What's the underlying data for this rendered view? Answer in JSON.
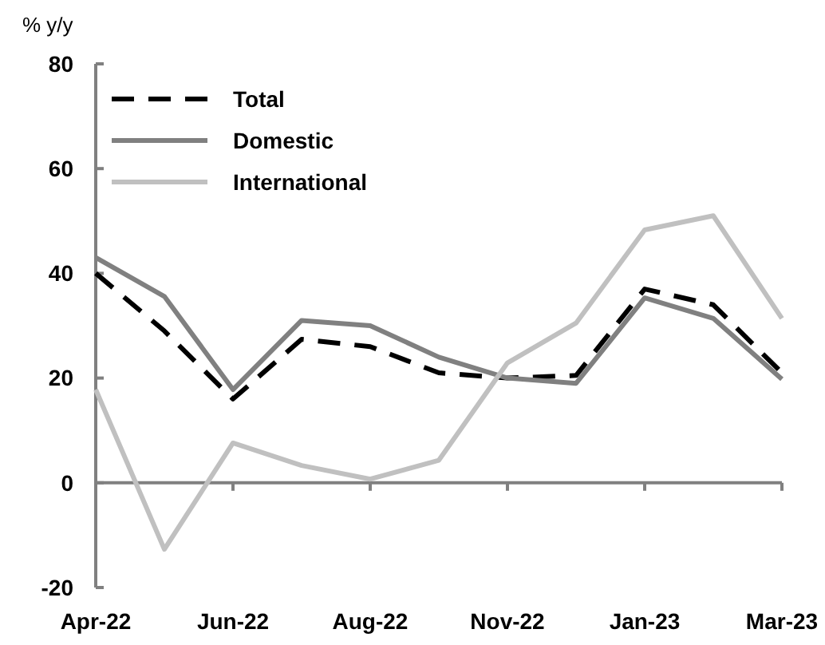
{
  "chart_data": {
    "type": "line",
    "ylabel": "% y/y",
    "categories": [
      "Apr-22",
      null,
      "Jun-22",
      null,
      "Aug-22",
      null,
      "Nov-22",
      null,
      "Jan-23",
      null,
      "Mar-23"
    ],
    "series": [
      {
        "name": "Total",
        "color": "#000000",
        "line_style": "dashed",
        "values": [
          40,
          29,
          16,
          27.4,
          26,
          21,
          20,
          20.5,
          37,
          34,
          21
        ]
      },
      {
        "name": "Domestic",
        "color": "#808080",
        "values": [
          43,
          35.6,
          17.8,
          31,
          30,
          24,
          20,
          19,
          35.3,
          31.4,
          19.8
        ]
      },
      {
        "name": "International",
        "color": "#c0c0c0",
        "values": [
          17.8,
          -12.7,
          7.6,
          3.3,
          0.7,
          4.3,
          22.9,
          30.5,
          48.3,
          51,
          31.4
        ]
      }
    ],
    "ylim": [
      -20,
      80
    ],
    "yticks": [
      -20,
      0,
      20,
      40,
      60,
      80
    ],
    "legend": "top left",
    "marker": "none"
  }
}
